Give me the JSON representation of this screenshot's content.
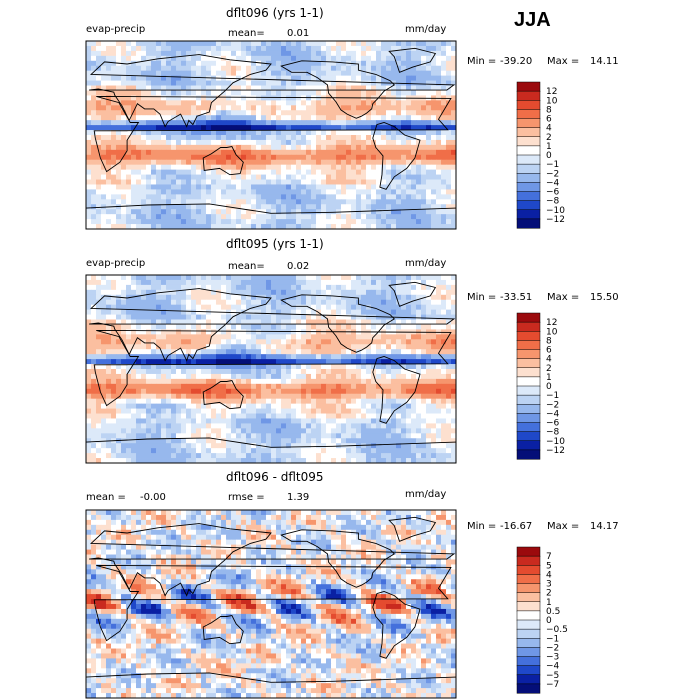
{
  "season": "JJA",
  "chart_data": [
    {
      "type": "heatmap",
      "title": "dflt096 (yrs 1-1)",
      "variable": "evap-precip",
      "stat_label": "mean=",
      "stat_value": "0.01",
      "units": "mm/day",
      "min_label": "Min =",
      "min_value": "-39.20",
      "max_label": "Max =",
      "max_value": "14.11",
      "colorbar_levels": [
        "12",
        "10",
        "8",
        "6",
        "4",
        "2",
        "1",
        "0",
        "−1",
        "−2",
        "−4",
        "−6",
        "−8",
        "−10",
        "−12"
      ],
      "colorbar_colors": [
        "#9b0a0d",
        "#c92a1f",
        "#e44b2f",
        "#f06e48",
        "#f6956d",
        "#fbbfa0",
        "#fde0cf",
        "#ffffff",
        "#dce9f9",
        "#bcd3f3",
        "#97b8ed",
        "#6f97e6",
        "#4470dc",
        "#1f48c9",
        "#0a20a3",
        "#040e78"
      ]
    },
    {
      "type": "heatmap",
      "title": "dflt095 (yrs 1-1)",
      "variable": "evap-precip",
      "stat_label": "mean=",
      "stat_value": "0.02",
      "units": "mm/day",
      "min_label": "Min =",
      "min_value": "-33.51",
      "max_label": "Max =",
      "max_value": "15.50",
      "colorbar_levels": [
        "12",
        "10",
        "8",
        "6",
        "4",
        "2",
        "1",
        "0",
        "−1",
        "−2",
        "−4",
        "−6",
        "−8",
        "−10",
        "−12"
      ],
      "colorbar_colors": [
        "#9b0a0d",
        "#c92a1f",
        "#e44b2f",
        "#f06e48",
        "#f6956d",
        "#fbbfa0",
        "#fde0cf",
        "#ffffff",
        "#dce9f9",
        "#bcd3f3",
        "#97b8ed",
        "#6f97e6",
        "#4470dc",
        "#1f48c9",
        "#0a20a3",
        "#040e78"
      ]
    },
    {
      "type": "heatmap",
      "title": "dflt096 - dflt095",
      "stat_label": "mean =",
      "stat_value": "-0.00",
      "rmse_label": "rmse =",
      "rmse_value": "1.39",
      "units": "mm/day",
      "min_label": "Min =",
      "min_value": "-16.67",
      "max_label": "Max =",
      "max_value": "14.17",
      "colorbar_levels": [
        "7",
        "5",
        "4",
        "3",
        "2",
        "1",
        "0.5",
        "0",
        "−0.5",
        "−1",
        "−2",
        "−3",
        "−4",
        "−5",
        "−7"
      ],
      "colorbar_colors": [
        "#9b0a0d",
        "#c92a1f",
        "#e44b2f",
        "#f06e48",
        "#f6956d",
        "#fbbfa0",
        "#fde0cf",
        "#ffffff",
        "#dce9f9",
        "#bcd3f3",
        "#97b8ed",
        "#6f97e6",
        "#4470dc",
        "#1f48c9",
        "#0a20a3",
        "#040e78"
      ]
    }
  ]
}
